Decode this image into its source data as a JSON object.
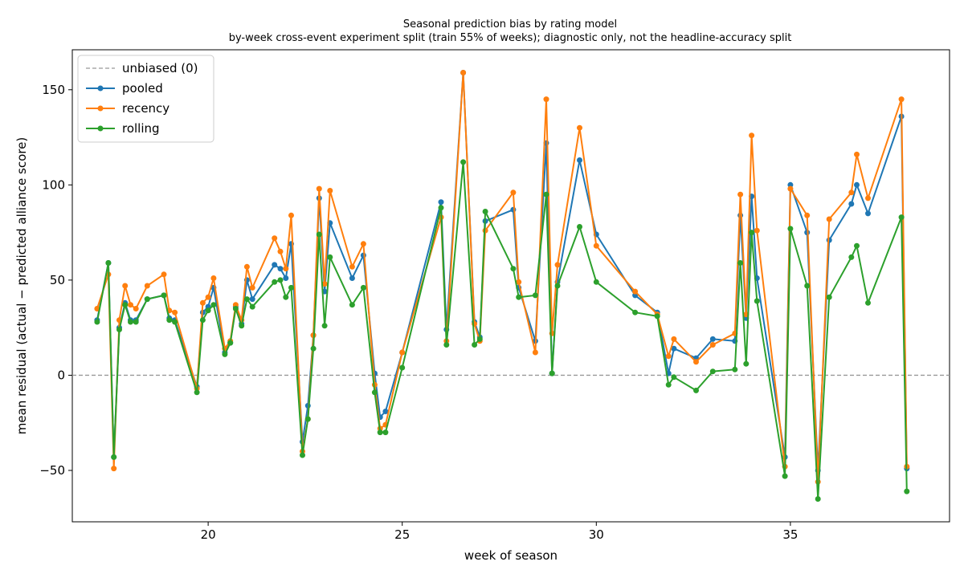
{
  "chart_data": {
    "type": "line",
    "title": "Seasonal prediction bias by rating model",
    "subtitle": "by-week cross-event experiment split (train 55% of weeks); diagnostic only, not the headline-accuracy split",
    "xlabel": "week of season",
    "ylabel": "mean residual (actual − predicted alliance score)",
    "xlim": [
      16.5,
      39.1
    ],
    "ylim": [
      -77,
      171
    ],
    "xticks": [
      20,
      25,
      30,
      35
    ],
    "yticks": [
      -50,
      0,
      50,
      100,
      150
    ],
    "xtick_labels": [
      "20",
      "25",
      "30",
      "35"
    ],
    "ytick_labels": [
      "−50",
      "0",
      "50",
      "100",
      "150"
    ],
    "grid": false,
    "legend_position": "top-left",
    "reference_line": {
      "name": "unbiased (0)",
      "y": 0,
      "color": "#999999"
    },
    "x": [
      17.14,
      17.43,
      17.57,
      17.71,
      17.86,
      18.0,
      18.14,
      18.43,
      18.86,
      19.0,
      19.14,
      19.71,
      19.86,
      20.0,
      20.14,
      20.43,
      20.57,
      20.71,
      20.86,
      21.0,
      21.14,
      21.71,
      21.86,
      22.0,
      22.14,
      22.43,
      22.57,
      22.71,
      22.86,
      23.0,
      23.14,
      23.71,
      24.0,
      24.29,
      24.43,
      24.57,
      25.0,
      26.0,
      26.14,
      26.57,
      26.86,
      27.0,
      27.14,
      27.86,
      28.0,
      28.43,
      28.71,
      28.86,
      29.0,
      29.57,
      30.0,
      31.0,
      31.57,
      31.86,
      32.0,
      32.57,
      33.0,
      33.57,
      33.71,
      33.86,
      34.0,
      34.14,
      34.86,
      35.0,
      35.43,
      35.71,
      36.0,
      36.57,
      36.71,
      37.0,
      37.86,
      38.0
    ],
    "series": [
      {
        "name": "pooled",
        "color": "#1f77b4",
        "values": [
          29,
          59,
          -43,
          25,
          38,
          29,
          29,
          40,
          42,
          30,
          29,
          -6,
          33,
          36,
          46,
          12,
          17,
          36,
          27,
          50,
          40,
          58,
          56,
          51,
          69,
          -35,
          -16,
          21,
          93,
          44,
          80,
          51,
          63,
          1,
          -22,
          -19,
          12,
          91,
          24,
          159,
          28,
          20,
          81,
          87,
          46,
          18,
          122,
          1,
          49,
          113,
          74,
          42,
          33,
          1,
          14,
          9,
          19,
          18,
          84,
          30,
          94,
          51,
          -43,
          100,
          75,
          -50,
          71,
          90,
          100,
          85,
          136,
          -49
        ]
      },
      {
        "name": "recency",
        "color": "#ff7f0e",
        "values": [
          35,
          53,
          -49,
          29,
          47,
          37,
          35,
          47,
          53,
          34,
          33,
          -7,
          38,
          41,
          51,
          14,
          18,
          37,
          29,
          57,
          46,
          72,
          65,
          56,
          84,
          -40,
          -23,
          21,
          98,
          48,
          97,
          57,
          69,
          -5,
          -28,
          -26,
          12,
          83,
          18,
          159,
          27,
          18,
          76,
          96,
          49,
          12,
          145,
          22,
          58,
          130,
          68,
          44,
          32,
          10,
          19,
          7,
          16,
          22,
          95,
          32,
          126,
          76,
          -48,
          98,
          84,
          -56,
          82,
          96,
          116,
          93,
          145,
          -48
        ]
      },
      {
        "name": "rolling",
        "color": "#2ca02c",
        "values": [
          28,
          59,
          -43,
          24,
          37,
          28,
          28,
          40,
          42,
          29,
          28,
          -9,
          29,
          34,
          37,
          11,
          17,
          35,
          26,
          40,
          36,
          49,
          50,
          41,
          46,
          -42,
          -23,
          14,
          74,
          26,
          62,
          37,
          46,
          -9,
          -30,
          -30,
          4,
          88,
          16,
          112,
          16,
          19,
          86,
          56,
          41,
          42,
          95,
          1,
          47,
          78,
          49,
          33,
          31,
          -5,
          -1,
          -8,
          2,
          3,
          59,
          6,
          75,
          39,
          -53,
          77,
          47,
          -65,
          41,
          62,
          68,
          38,
          83,
          -61
        ]
      }
    ]
  }
}
